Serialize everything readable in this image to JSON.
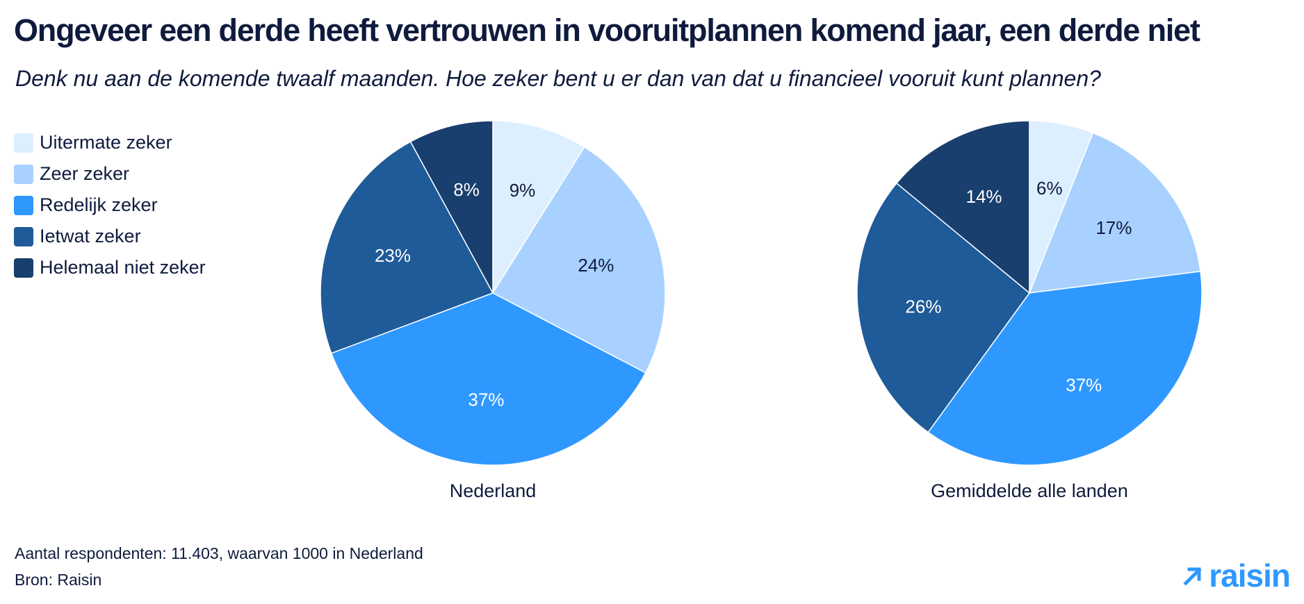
{
  "title": "Ongeveer een derde heeft vertrouwen in vooruitplannen komend jaar, een derde niet",
  "subtitle": "Denk nu aan de komende twaalf maanden. Hoe zeker bent u er dan van dat u financieel vooruit kunt plannen?",
  "legend": {
    "items": [
      {
        "label": "Uitermate zeker",
        "color": "#ddeeff"
      },
      {
        "label": "Zeer zeker",
        "color": "#a8d1ff"
      },
      {
        "label": "Redelijk zeker",
        "color": "#2f98ff"
      },
      {
        "label": "Ietwat zeker",
        "color": "#1f5b99"
      },
      {
        "label": "Helemaal niet zeker",
        "color": "#183f6e"
      }
    ]
  },
  "footnotes": {
    "respondents": "Aantal respondenten: 11.403, waarvan 1000 in Nederland",
    "source": "Bron: Raisin"
  },
  "logo": {
    "text": "raisin",
    "icon": "arrow-up-right-icon",
    "color": "#2f98ff"
  },
  "chart_data": [
    {
      "type": "pie",
      "caption": "Nederland",
      "labels": [
        "Uitermate zeker",
        "Zeer zeker",
        "Redelijk zeker",
        "Ietwat zeker",
        "Helemaal niet zeker"
      ],
      "values": [
        9,
        24,
        37,
        23,
        8
      ],
      "value_labels": [
        "9%",
        "24%",
        "37%",
        "23%",
        "8%"
      ],
      "colors": [
        "#ddeeff",
        "#a8d1ff",
        "#2f98ff",
        "#1f5b99",
        "#183f6e"
      ],
      "label_colors": [
        "#0f1b3d",
        "#0f1b3d",
        "#ffffff",
        "#ffffff",
        "#ffffff"
      ]
    },
    {
      "type": "pie",
      "caption": "Gemiddelde alle landen",
      "labels": [
        "Uitermate zeker",
        "Zeer zeker",
        "Redelijk zeker",
        "Ietwat zeker",
        "Helemaal niet zeker"
      ],
      "values": [
        6,
        17,
        37,
        26,
        14
      ],
      "value_labels": [
        "6%",
        "17%",
        "37%",
        "26%",
        "14%"
      ],
      "colors": [
        "#ddeeff",
        "#a8d1ff",
        "#2f98ff",
        "#1f5b99",
        "#183f6e"
      ],
      "label_colors": [
        "#0f1b3d",
        "#0f1b3d",
        "#ffffff",
        "#ffffff",
        "#ffffff"
      ]
    }
  ]
}
